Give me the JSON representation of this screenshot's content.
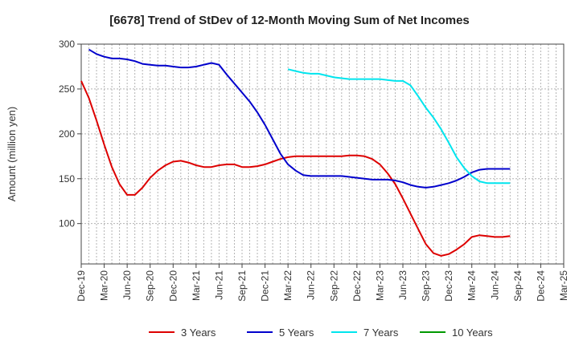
{
  "chart_data": {
    "type": "line",
    "title": "[6678]  Trend of StDev of 12-Month Moving Sum of Net Incomes",
    "xlabel": "",
    "ylabel": "Amount (million yen)",
    "ylim": [
      55,
      300
    ],
    "yticks": [
      100,
      150,
      200,
      250,
      300
    ],
    "grid": true,
    "legend_position": "bottom",
    "x_tick_labels": [
      "Dec-19",
      "Mar-20",
      "Jun-20",
      "Sep-20",
      "Dec-20",
      "Mar-21",
      "Jun-21",
      "Sep-21",
      "Dec-21",
      "Mar-22",
      "Jun-22",
      "Sep-22",
      "Dec-22",
      "Mar-23",
      "Jun-23",
      "Sep-23",
      "Dec-23",
      "Mar-24",
      "Jun-24",
      "Sep-24",
      "Dec-24",
      "Mar-25"
    ],
    "series": [
      {
        "name": "3 Years",
        "color": "#dd0000",
        "values": [
          259,
          240,
          215,
          188,
          163,
          144,
          132,
          132,
          140,
          151,
          159,
          165,
          169,
          170,
          168,
          165,
          163,
          163,
          165,
          166,
          166,
          163,
          163,
          164,
          166,
          169,
          172,
          174,
          175,
          175,
          175,
          175,
          175,
          175,
          175,
          176,
          176,
          175,
          172,
          166,
          156,
          144,
          128,
          111,
          94,
          77,
          67,
          64,
          66,
          71,
          77,
          85,
          87,
          86,
          85,
          85,
          86
        ]
      },
      {
        "name": "5 Years",
        "color": "#0000cc",
        "values": [
          null,
          null,
          null,
          null,
          null,
          null,
          null,
          null,
          null,
          null,
          null,
          null,
          null,
          null,
          null,
          null,
          null,
          null,
          null,
          null,
          null,
          null,
          null,
          null,
          null,
          null,
          null,
          null,
          null,
          null,
          null,
          null,
          null,
          null,
          null,
          null,
          null,
          null,
          null,
          null,
          null,
          null,
          null,
          null,
          null,
          null,
          null,
          null,
          null,
          null,
          null,
          null,
          null,
          null,
          null,
          null,
          null
        ]
      },
      {
        "name": "7 Years",
        "color": "#00e5ee",
        "values": [
          null,
          null,
          null,
          null,
          null,
          null,
          null,
          null,
          null,
          null,
          null,
          null,
          null,
          null,
          null,
          null,
          null,
          null,
          null,
          null,
          null,
          null,
          null,
          null,
          null,
          null,
          null,
          null,
          null,
          null,
          null,
          null,
          null,
          null,
          null,
          null,
          null,
          null,
          null,
          null,
          null,
          null,
          null,
          null,
          null,
          null,
          null,
          null,
          null,
          null,
          null,
          null,
          null,
          null,
          null,
          null,
          null
        ]
      },
      {
        "name": "10 Years",
        "color": "#009900",
        "values": []
      }
    ]
  }
}
